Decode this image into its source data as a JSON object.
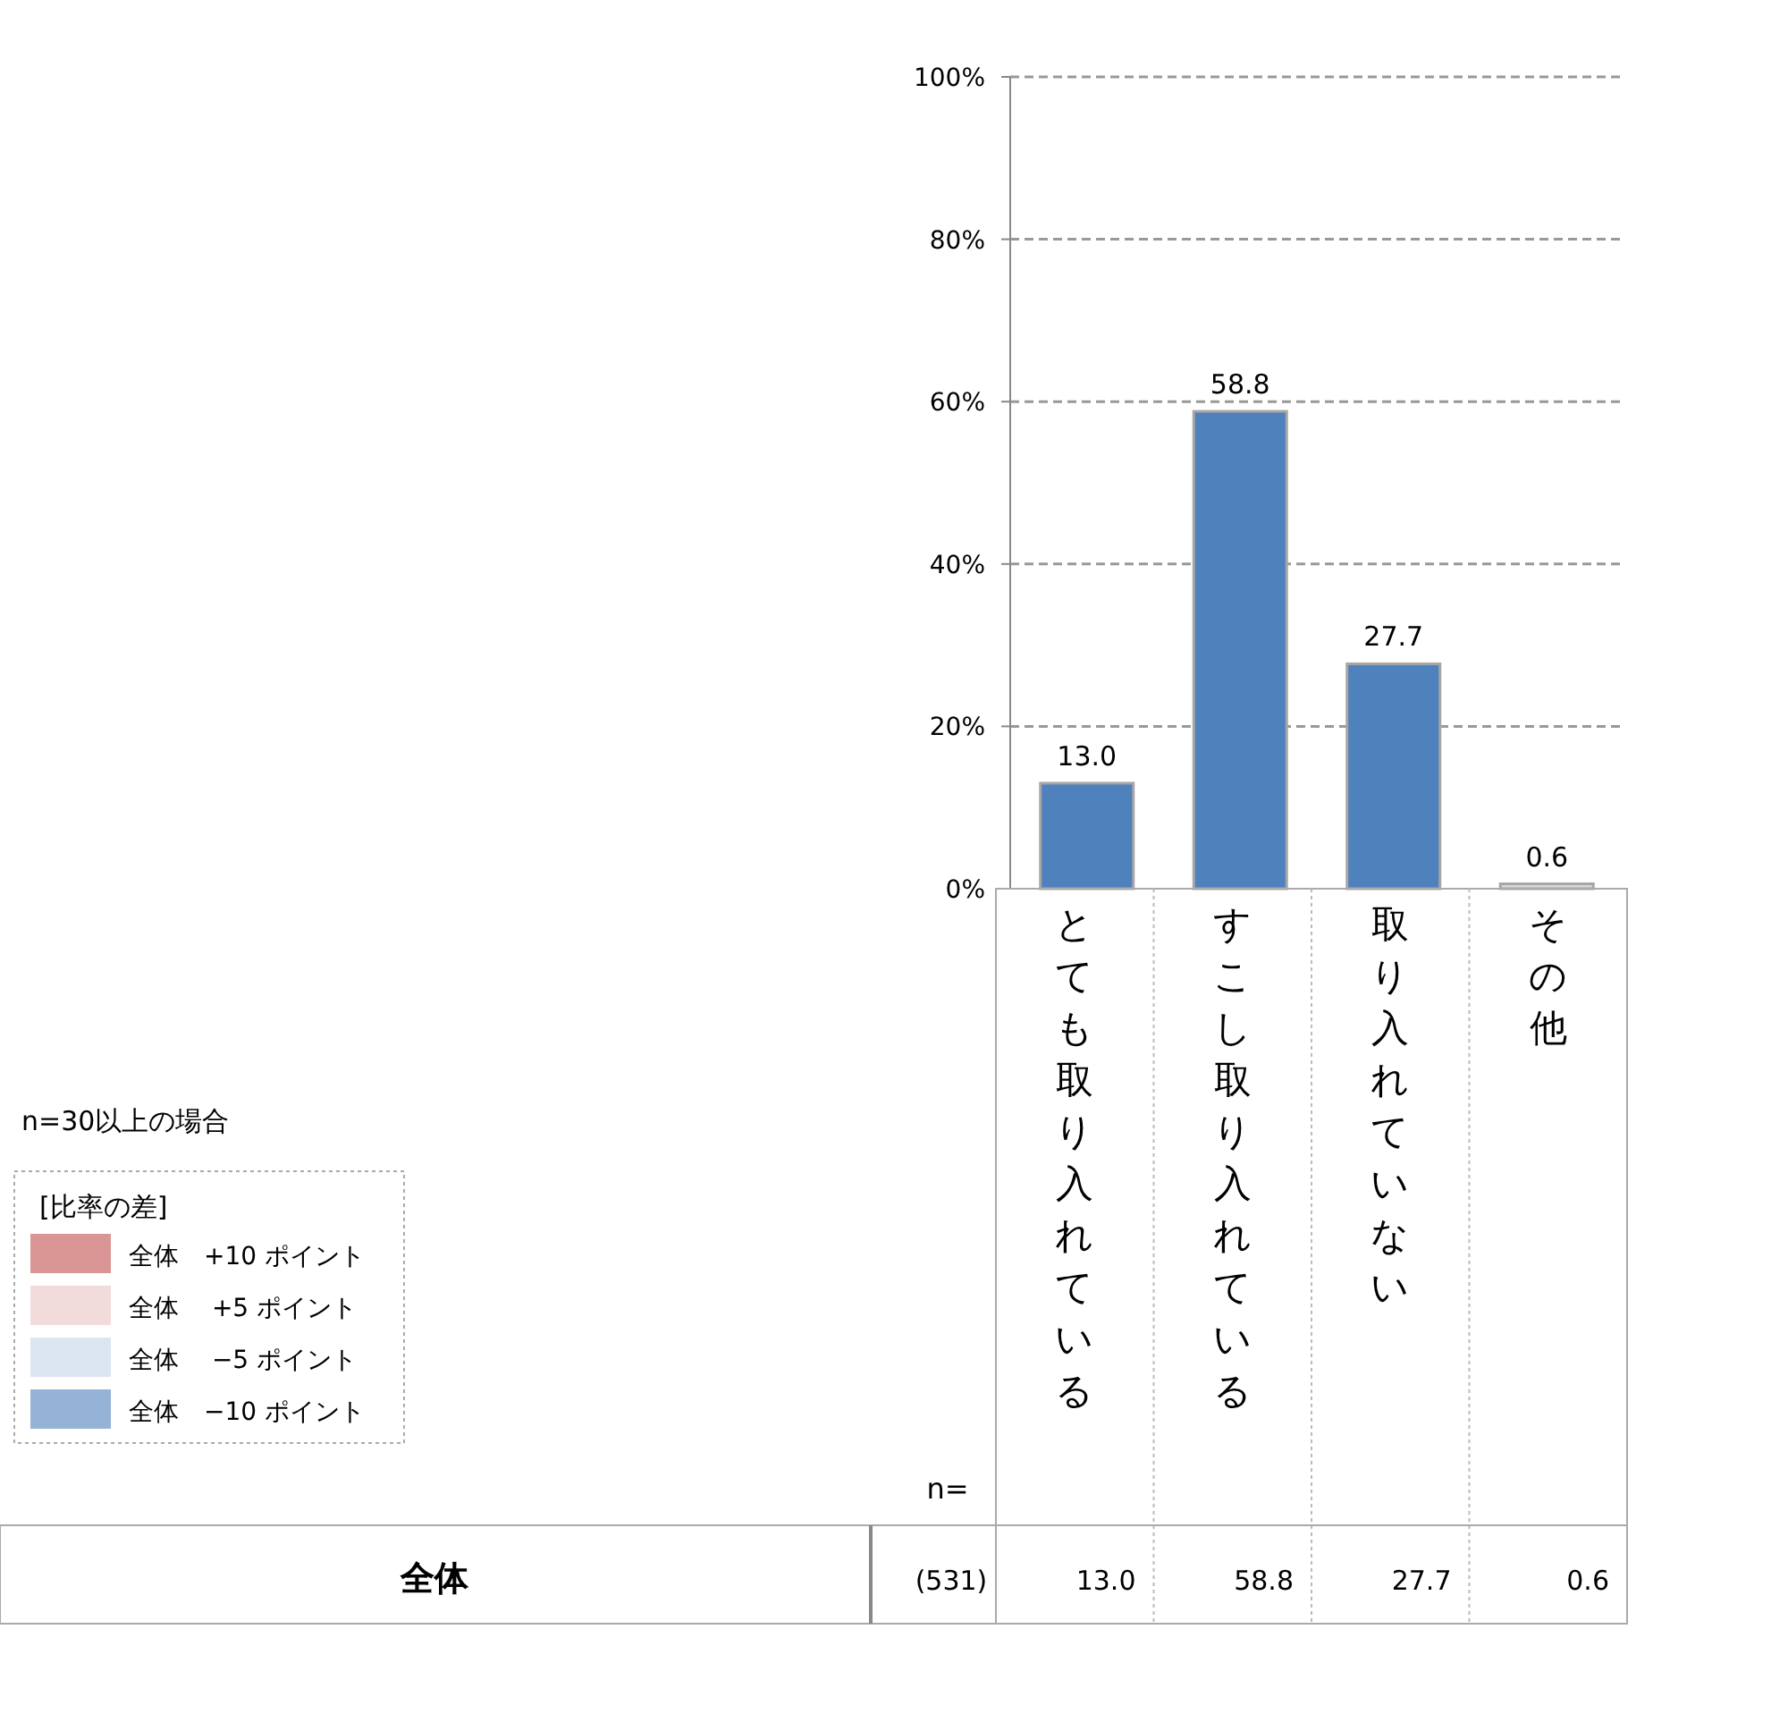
{
  "chart_data": {
    "type": "bar",
    "categories": [
      "とても取り入れている",
      "すこし取り入れている",
      "取り入れていない",
      "その他"
    ],
    "values": [
      13.0,
      58.8,
      27.7,
      0.6
    ],
    "colors": [
      "#4f81bd",
      "#4f81bd",
      "#4f81bd",
      "#d9d9d9"
    ],
    "ylim": [
      0,
      100
    ],
    "yticks": [
      {
        "value": 0,
        "label": "0%"
      },
      {
        "value": 20,
        "label": "20%"
      },
      {
        "value": 40,
        "label": "40%"
      },
      {
        "value": 60,
        "label": "60%"
      },
      {
        "value": 80,
        "label": "80%"
      },
      {
        "value": 100,
        "label": "100%"
      }
    ],
    "grid": "y",
    "value_labels": [
      "13.0",
      "58.8",
      "27.7",
      "0.6"
    ],
    "legend_title": "[比率の差]",
    "annotations": [
      "n=30以上の場合",
      "全体　+10 ポイント",
      "全体　 +5 ポイント",
      "全体　 −5 ポイント",
      "全体　−10 ポイント",
      "n=",
      "全体",
      "(531)"
    ]
  }
}
